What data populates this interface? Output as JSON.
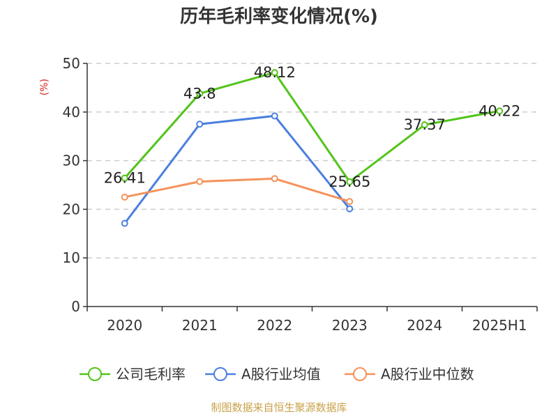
{
  "chart_data": {
    "type": "line",
    "title": "历年毛利率变化情况(%)",
    "ylabel": "(%)",
    "xlabel": "",
    "ylim": [
      0,
      50
    ],
    "yticks": [
      0,
      10,
      20,
      30,
      40,
      50
    ],
    "grid": true,
    "legend_position": "bottom",
    "categories": [
      "2020",
      "2021",
      "2022",
      "2023",
      "2024",
      "2025H1"
    ],
    "series": [
      {
        "name": "公司毛利率",
        "color": "#52c41a",
        "values": [
          26.41,
          43.8,
          48.12,
          25.65,
          37.37,
          40.22
        ],
        "labels": [
          "26.41",
          "43.8",
          "48.12",
          "25.65",
          "37.37",
          "40.22"
        ]
      },
      {
        "name": "A股行业均值",
        "color": "#4a7fe0",
        "values": [
          17.1,
          37.5,
          39.2,
          20.1,
          null,
          null
        ]
      },
      {
        "name": "A股行业中位数",
        "color": "#f5925a",
        "values": [
          22.5,
          25.7,
          26.3,
          21.6,
          null,
          null
        ]
      }
    ]
  },
  "footer": {
    "source": "制图数据来自恒生聚源数据库"
  }
}
